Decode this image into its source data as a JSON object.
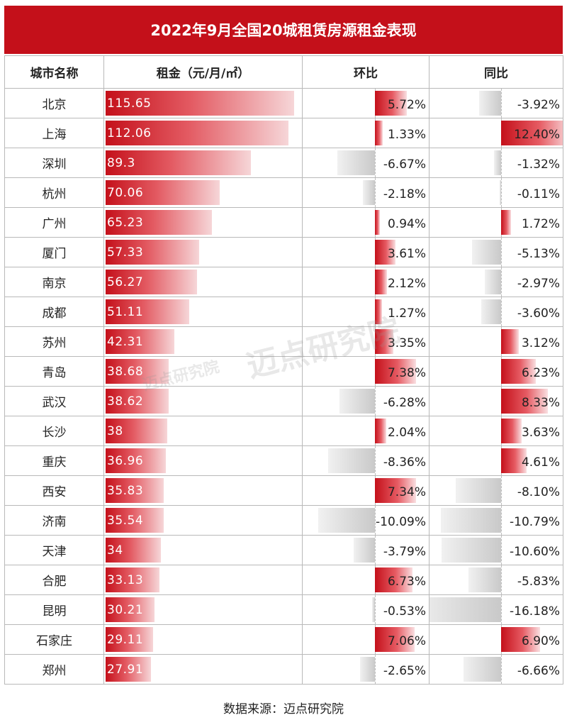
{
  "chart_data": {
    "type": "table",
    "title": "2022年9月全国20城租赁房源租金表现",
    "columns": [
      "城市名称",
      "租金（元/月/㎡）",
      "环比",
      "同比"
    ],
    "rows": [
      {
        "city": "北京",
        "rent": 115.65,
        "rent_label": "115.65",
        "mom": 5.72,
        "mom_label": "5.72%",
        "yoy": -3.92,
        "yoy_label": "-3.92%"
      },
      {
        "city": "上海",
        "rent": 112.06,
        "rent_label": "112.06",
        "mom": 1.33,
        "mom_label": "1.33%",
        "yoy": 12.4,
        "yoy_label": "12.40%"
      },
      {
        "city": "深圳",
        "rent": 89.3,
        "rent_label": "89.3",
        "mom": -6.67,
        "mom_label": "-6.67%",
        "yoy": -1.32,
        "yoy_label": "-1.32%"
      },
      {
        "city": "杭州",
        "rent": 70.06,
        "rent_label": "70.06",
        "mom": -2.18,
        "mom_label": "-2.18%",
        "yoy": -0.11,
        "yoy_label": "-0.11%"
      },
      {
        "city": "广州",
        "rent": 65.23,
        "rent_label": "65.23",
        "mom": 0.94,
        "mom_label": "0.94%",
        "yoy": 1.72,
        "yoy_label": "1.72%"
      },
      {
        "city": "厦门",
        "rent": 57.33,
        "rent_label": "57.33",
        "mom": 3.61,
        "mom_label": "3.61%",
        "yoy": -5.13,
        "yoy_label": "-5.13%"
      },
      {
        "city": "南京",
        "rent": 56.27,
        "rent_label": "56.27",
        "mom": 2.12,
        "mom_label": "2.12%",
        "yoy": -2.97,
        "yoy_label": "-2.97%"
      },
      {
        "city": "成都",
        "rent": 51.11,
        "rent_label": "51.11",
        "mom": 1.27,
        "mom_label": "1.27%",
        "yoy": -3.6,
        "yoy_label": "-3.60%"
      },
      {
        "city": "苏州",
        "rent": 42.31,
        "rent_label": "42.31",
        "mom": 3.35,
        "mom_label": "3.35%",
        "yoy": 3.12,
        "yoy_label": "3.12%"
      },
      {
        "city": "青岛",
        "rent": 38.68,
        "rent_label": "38.68",
        "mom": 7.38,
        "mom_label": "7.38%",
        "yoy": 6.23,
        "yoy_label": "6.23%"
      },
      {
        "city": "武汉",
        "rent": 38.62,
        "rent_label": "38.62",
        "mom": -6.28,
        "mom_label": "-6.28%",
        "yoy": 8.33,
        "yoy_label": "8.33%"
      },
      {
        "city": "长沙",
        "rent": 38,
        "rent_label": "38",
        "mom": 2.04,
        "mom_label": "2.04%",
        "yoy": 3.63,
        "yoy_label": "3.63%"
      },
      {
        "city": "重庆",
        "rent": 36.96,
        "rent_label": "36.96",
        "mom": -8.36,
        "mom_label": "-8.36%",
        "yoy": 4.61,
        "yoy_label": "4.61%"
      },
      {
        "city": "西安",
        "rent": 35.83,
        "rent_label": "35.83",
        "mom": 7.34,
        "mom_label": "7.34%",
        "yoy": -8.1,
        "yoy_label": "-8.10%"
      },
      {
        "city": "济南",
        "rent": 35.54,
        "rent_label": "35.54",
        "mom": -10.09,
        "mom_label": "-10.09%",
        "yoy": -10.79,
        "yoy_label": "-10.79%"
      },
      {
        "city": "天津",
        "rent": 34,
        "rent_label": "34",
        "mom": -3.79,
        "mom_label": "-3.79%",
        "yoy": -10.6,
        "yoy_label": "-10.60%"
      },
      {
        "city": "合肥",
        "rent": 33.13,
        "rent_label": "33.13",
        "mom": 6.73,
        "mom_label": "6.73%",
        "yoy": -5.83,
        "yoy_label": "-5.83%"
      },
      {
        "city": "昆明",
        "rent": 30.21,
        "rent_label": "30.21",
        "mom": -0.53,
        "mom_label": "-0.53%",
        "yoy": -16.18,
        "yoy_label": "-16.18%"
      },
      {
        "city": "石家庄",
        "rent": 29.11,
        "rent_label": "29.11",
        "mom": 7.06,
        "mom_label": "7.06%",
        "yoy": 6.9,
        "yoy_label": "6.90%"
      },
      {
        "city": "郑州",
        "rent": 27.91,
        "rent_label": "27.91",
        "mom": -2.65,
        "mom_label": "-2.65%",
        "yoy": -6.66,
        "yoy_label": "-6.66%"
      }
    ]
  },
  "colors": {
    "accent": "#c4101a",
    "negative_bar": "#c9c9c9",
    "border": "#b9b9b9"
  },
  "footer": "数据来源：迈点研究院",
  "watermark": {
    "large": "迈点研究院",
    "small": "迈点研究院"
  }
}
